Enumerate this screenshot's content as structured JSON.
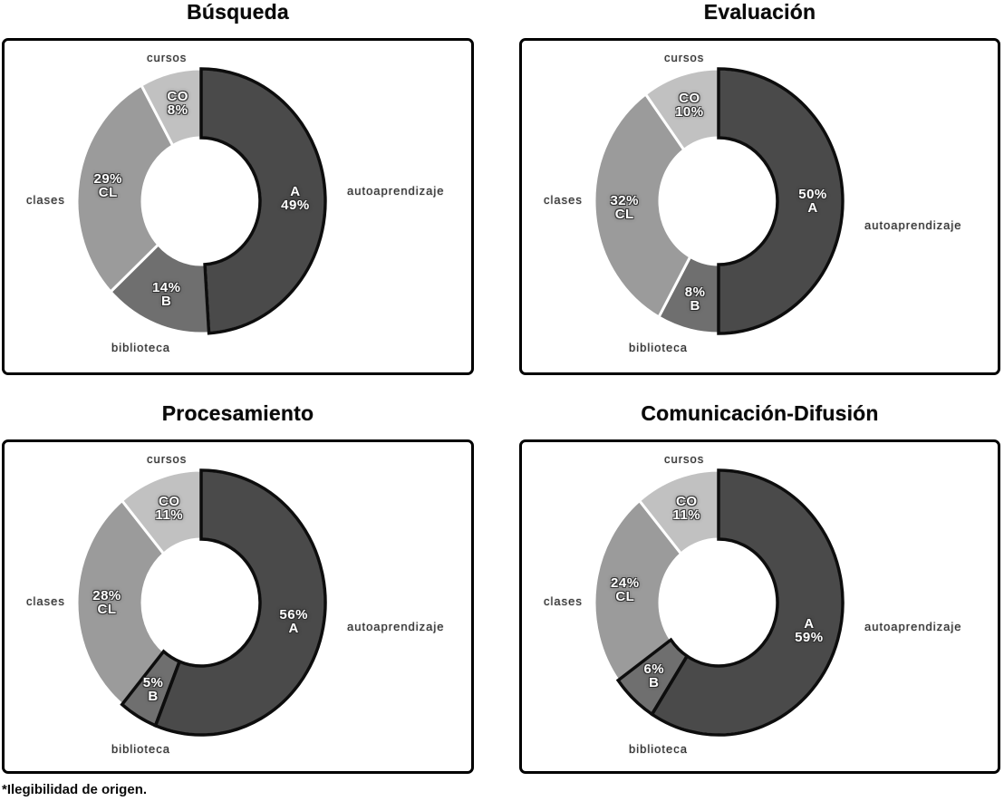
{
  "footnote": "*Ilegibilidad de origen.",
  "palette": {
    "A": "#4a4a4a",
    "B": "#6f6f6f",
    "CL": "#9b9b9b",
    "CO": "#c1c1c1",
    "slice_gap": "#ffffff",
    "dark_outline": "#0d0d0d",
    "frame_border": "#000000",
    "slice_label_text": "#ffffff",
    "outer_label_text": "#2d2d2d"
  },
  "chart_data": [
    {
      "type": "pie",
      "variant": "donut",
      "title": "Búsqueda",
      "start_angle": "12-oclock",
      "direction": "clockwise",
      "donut_hole_ratio": 0.47,
      "legend": "none",
      "slices": [
        {
          "code": "A",
          "category": "autoaprendizaje",
          "value": 49,
          "label_lines": [
            "A",
            "49%"
          ],
          "outlined": true
        },
        {
          "code": "B",
          "category": "biblioteca",
          "value": 14,
          "label_lines": [
            "14%",
            "B"
          ],
          "outlined": false
        },
        {
          "code": "CL",
          "category": "clases",
          "value": 29,
          "label_lines": [
            "29%",
            "CL"
          ],
          "outlined": false
        },
        {
          "code": "CO",
          "category": "cursos",
          "value": 8,
          "label_lines": [
            "CO",
            "8%"
          ],
          "outlined": false
        }
      ]
    },
    {
      "type": "pie",
      "variant": "donut",
      "title": "Evaluación",
      "start_angle": "12-oclock",
      "direction": "clockwise",
      "donut_hole_ratio": 0.47,
      "legend": "none",
      "slices": [
        {
          "code": "A",
          "category": "autoaprendizaje",
          "value": 50,
          "label_lines": [
            "50%",
            "A"
          ],
          "outlined": true
        },
        {
          "code": "B",
          "category": "biblioteca",
          "value": 8,
          "label_lines": [
            "8%",
            "B"
          ],
          "outlined": false
        },
        {
          "code": "CL",
          "category": "clases",
          "value": 32,
          "label_lines": [
            "32%",
            "CL"
          ],
          "outlined": false
        },
        {
          "code": "CO",
          "category": "cursos",
          "value": 10,
          "label_lines": [
            "CO",
            "10%"
          ],
          "outlined": false
        }
      ]
    },
    {
      "type": "pie",
      "variant": "donut",
      "title": "Procesamiento",
      "start_angle": "12-oclock",
      "direction": "clockwise",
      "donut_hole_ratio": 0.47,
      "legend": "none",
      "slices": [
        {
          "code": "A",
          "category": "autoaprendizaje",
          "value": 56,
          "label_lines": [
            "56%",
            "A"
          ],
          "outlined": true
        },
        {
          "code": "B",
          "category": "biblioteca",
          "value": 5,
          "label_lines": [
            "5%",
            "B"
          ],
          "outlined": true
        },
        {
          "code": "CL",
          "category": "clases",
          "value": 28,
          "label_lines": [
            "28%",
            "CL"
          ],
          "outlined": false
        },
        {
          "code": "CO",
          "category": "cursos",
          "value": 11,
          "label_lines": [
            "CO",
            "11%"
          ],
          "outlined": false
        }
      ]
    },
    {
      "type": "pie",
      "variant": "donut",
      "title": "Comunicación-Difusión",
      "start_angle": "12-oclock",
      "direction": "clockwise",
      "donut_hole_ratio": 0.47,
      "legend": "none",
      "slices": [
        {
          "code": "A",
          "category": "autoaprendizaje",
          "value": 59,
          "label_lines": [
            "A",
            "59%"
          ],
          "outlined": true
        },
        {
          "code": "B",
          "category": "biblioteca",
          "value": 6,
          "label_lines": [
            "6%",
            "B"
          ],
          "outlined": true
        },
        {
          "code": "CL",
          "category": "clases",
          "value": 24,
          "label_lines": [
            "24%",
            "CL"
          ],
          "outlined": false
        },
        {
          "code": "CO",
          "category": "cursos",
          "value": 11,
          "label_lines": [
            "CO",
            "11%"
          ],
          "outlined": false
        }
      ]
    }
  ]
}
